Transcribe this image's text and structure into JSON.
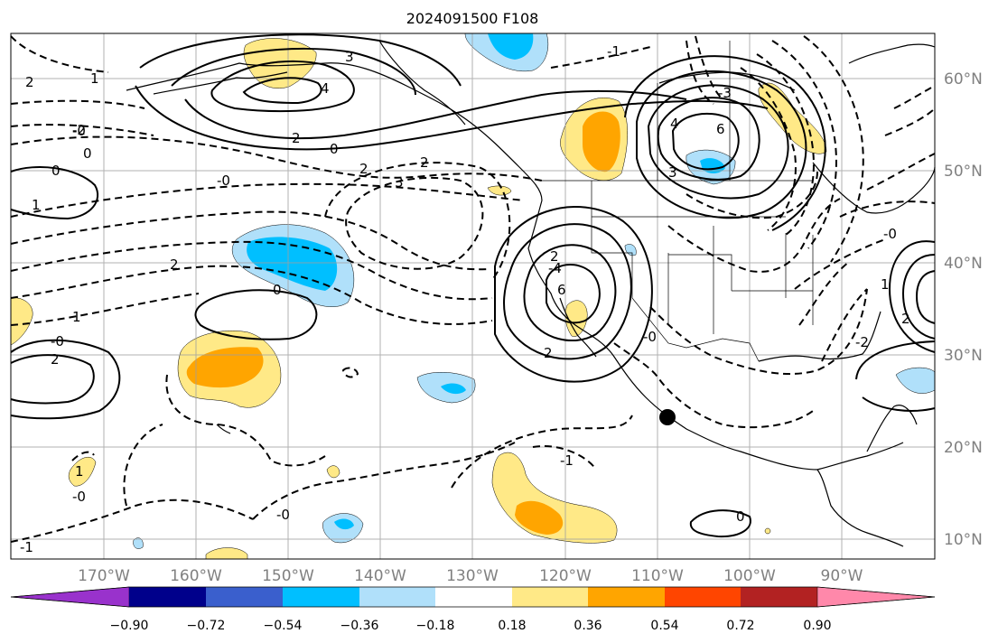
{
  "title": "2024091500 F108",
  "colors": {
    "pos_018": "#ffe987",
    "pos_036": "#ffa500",
    "pos_054": "#ff4500",
    "neg_018": "#b0e0fa",
    "neg_036": "#00bfff",
    "contour": "#000000",
    "grid": "#a0a0a0",
    "tick_label": "#808080",
    "marker": "#000000"
  },
  "map": {
    "lon_labels": [
      "170°W",
      "160°W",
      "150°W",
      "140°W",
      "130°W",
      "120°W",
      "110°W",
      "100°W",
      "90°W"
    ],
    "lat_labels": [
      "60°N",
      "50°N",
      "40°N",
      "30°N",
      "20°N",
      "10°N"
    ],
    "grid": true
  },
  "colorbar": {
    "ticks": [
      "−0.90",
      "−0.72",
      "−0.54",
      "−0.36",
      "−0.18",
      "0.18",
      "0.36",
      "0.54",
      "0.72",
      "0.90"
    ],
    "colors": [
      "#9932cc",
      "#00008b",
      "#3a5fcd",
      "#00bfff",
      "#b0e0fa",
      "#ffffff",
      "#ffe987",
      "#ffa500",
      "#ff4500",
      "#b22222",
      "#ff88aa"
    ]
  },
  "contour_labels": [
    "2",
    "1",
    "3",
    "4",
    "2",
    "0",
    "0",
    "0",
    "2",
    "2",
    "3",
    "-0",
    "-0",
    "1",
    "-2",
    "-1",
    "0",
    "2",
    "1",
    "-0",
    "2",
    "-3",
    "3",
    "4",
    "6",
    "6",
    "2",
    "-4",
    "2",
    "-0",
    "-0",
    "-1",
    "1",
    "-0",
    "0",
    "-0",
    "1",
    "2",
    "-2",
    "-1"
  ]
}
